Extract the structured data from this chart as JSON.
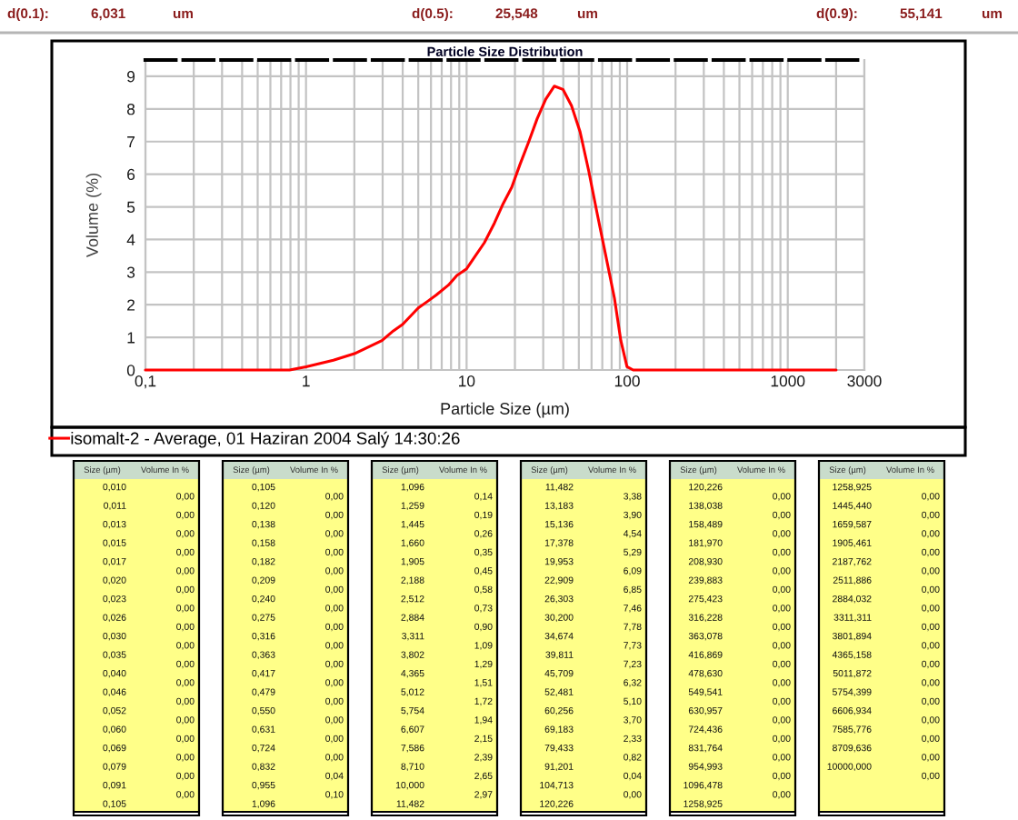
{
  "chart_data": [
    {
      "type": "line",
      "title": "Particle Size Distribution",
      "xlabel": "Particle Size (µm)",
      "ylabel": "Volume (%)",
      "annotations": [
        "d(0.1):",
        "6,031",
        "um",
        "d(0.5):",
        "25,548",
        "um",
        "d(0.9):",
        "55,141",
        "um"
      ],
      "log": "x",
      "xlim": [
        0.1,
        3000
      ],
      "xticks": [
        {
          "value": 0.1,
          "label": "0,1"
        },
        1,
        10,
        100,
        1000,
        3000
      ],
      "ylim": [
        0,
        9.5
      ],
      "yticks": [
        0,
        1,
        2,
        3,
        4,
        5,
        6,
        7,
        8,
        9
      ],
      "grid": true,
      "legend": "bottom",
      "series": [
        {
          "name": "isomalt-2 - Average, 01 Haziran 2004 Salý 14:30:26",
          "color": "#ff0000",
          "x": [
            0.1,
            0.79,
            1.0,
            1.48,
            2.0,
            2.97,
            3.5,
            4.0,
            5.0,
            5.7,
            6.47,
            7.7,
            8.7,
            10,
            11.0,
            12.9,
            14.9,
            16.9,
            19.1,
            21.5,
            24.4,
            27.5,
            31.1,
            35.2,
            39.8,
            45.0,
            50.9,
            57.6,
            65.0,
            73.6,
            83.3,
            91.3,
            99.7,
            109,
            2000
          ],
          "values": [
            0,
            0,
            0.1,
            0.3,
            0.5,
            0.9,
            1.2,
            1.4,
            1.9,
            2.1,
            2.3,
            2.6,
            2.9,
            3.1,
            3.4,
            3.9,
            4.5,
            5.1,
            5.6,
            6.3,
            7.0,
            7.7,
            8.3,
            8.7,
            8.6,
            8.1,
            7.3,
            6.1,
            4.8,
            3.5,
            2.2,
            0.9,
            0.1,
            0,
            0
          ]
        }
      ]
    },
    {
      "type": "other",
      "annotations": [
        "Size (µm)",
        "Volume In %"
      ],
      "categories": [
        "0,010",
        "0,011",
        "0,013",
        "0,015",
        "0,017",
        "0,020",
        "0,023",
        "0,026",
        "0,030",
        "0,035",
        "0,040",
        "0,046",
        "0,052",
        "0,060",
        "0,069",
        "0,079",
        "0,091",
        "0,105",
        "0,120",
        "0,138",
        "0,158",
        "0,182",
        "0,209",
        "0,240",
        "0,275",
        "0,316",
        "0,363",
        "0,417",
        "0,479",
        "0,550",
        "0,631",
        "0,724",
        "0,832",
        "0,955",
        "1,096",
        "1,259",
        "1,445",
        "1,660",
        "1,905",
        "2,188",
        "2,512",
        "2,884",
        "3,311",
        "3,802",
        "4,365",
        "5,012",
        "5,754",
        "6,607",
        "7,586",
        "8,710",
        "10,000",
        "11,482",
        "13,183",
        "15,136",
        "17,378",
        "19,953",
        "22,909",
        "26,303",
        "30,200",
        "34,674",
        "39,811",
        "45,709",
        "52,481",
        "60,256",
        "69,183",
        "79,433",
        "91,201",
        "104,713",
        "120,226",
        "138,038",
        "158,489",
        "181,970",
        "208,930",
        "239,883",
        "275,423",
        "316,228",
        "363,078",
        "416,869",
        "478,630",
        "549,541",
        "630,957",
        "724,436",
        "831,764",
        "954,993",
        "1096,478",
        "1258,925",
        "1445,440",
        "1659,587",
        "1905,461",
        "2187,762",
        "2511,886",
        "2884,032",
        "3311,311",
        "3801,894",
        "4365,158",
        "5011,872",
        "5754,399",
        "6606,934",
        "7585,776",
        "8709,636",
        "10000,000"
      ],
      "value_labels": [
        "0,00",
        "0,00",
        "0,00",
        "0,00",
        "0,00",
        "0,00",
        "0,00",
        "0,00",
        "0,00",
        "0,00",
        "0,00",
        "0,00",
        "0,00",
        "0,00",
        "0,00",
        "0,00",
        "0,00",
        "0,00",
        "0,00",
        "0,00",
        "0,00",
        "0,00",
        "0,00",
        "0,00",
        "0,00",
        "0,00",
        "0,00",
        "0,00",
        "0,00",
        "0,00",
        "0,00",
        "0,00",
        "0,04",
        "0,10",
        "0,14",
        "0,19",
        "0,26",
        "0,35",
        "0,45",
        "0,58",
        "0,73",
        "0,90",
        "1,09",
        "1,29",
        "1,51",
        "1,72",
        "1,94",
        "2,15",
        "2,39",
        "2,65",
        "2,97",
        "3,38",
        "3,90",
        "4,54",
        "5,29",
        "6,09",
        "6,85",
        "7,46",
        "7,78",
        "7,73",
        "7,23",
        "6,32",
        "5,10",
        "3,70",
        "2,33",
        "0,82",
        "0,04",
        "0,00",
        "0,00",
        "0,00",
        "0,00",
        "0,00",
        "0,00",
        "0,00",
        "0,00",
        "0,00",
        "0,00",
        "0,00",
        "0,00",
        "0,00",
        "0,00",
        "0,00",
        "0,00",
        "0,00",
        "0,00",
        "0,00",
        "0,00",
        "0,00",
        "0,00",
        "0,00",
        "0,00",
        "0,00",
        "0,00",
        "0,00",
        "0,00",
        "0,00",
        "0,00",
        "0,00",
        "0,00",
        "0,00",
        "0,00"
      ]
    }
  ]
}
